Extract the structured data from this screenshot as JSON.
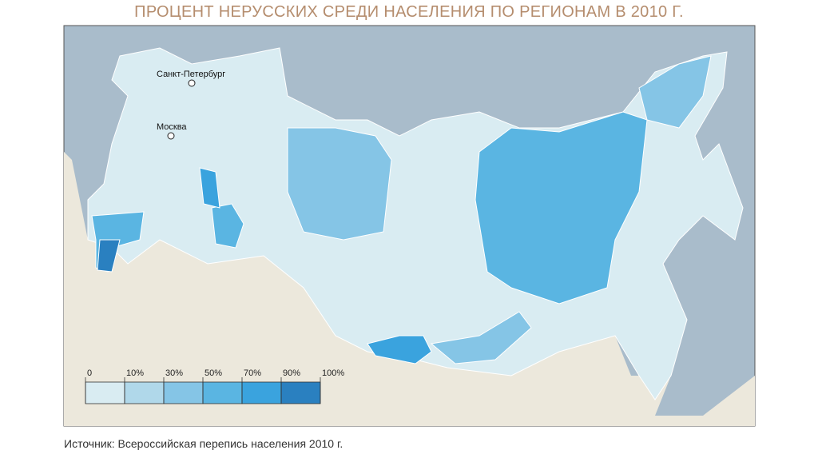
{
  "title": "ПРОЦЕНТ НЕРУССКИХ СРЕДИ НАСЕЛЕНИЯ ПО РЕГИОНАМ В 2010 Г.",
  "map": {
    "cities": [
      "Санкт-Петербург",
      "Москва"
    ]
  },
  "legend": {
    "ticks": [
      0,
      {
        "value": 10,
        "label": "10%"
      },
      {
        "value": 30,
        "label": "30%"
      },
      {
        "value": 50,
        "label": "50%"
      },
      {
        "value": 70,
        "label": "70%"
      },
      {
        "value": 90,
        "label": "90%"
      },
      {
        "value": 100,
        "label": "100%"
      }
    ],
    "colors": [
      "#d9ecf2",
      "#b0d8ea",
      "#85c5e6",
      "#5ab5e2",
      "#3aa3de",
      "#2a80c0"
    ]
  },
  "source": "Источник: Всероссийская перепись населения 2010 г."
}
